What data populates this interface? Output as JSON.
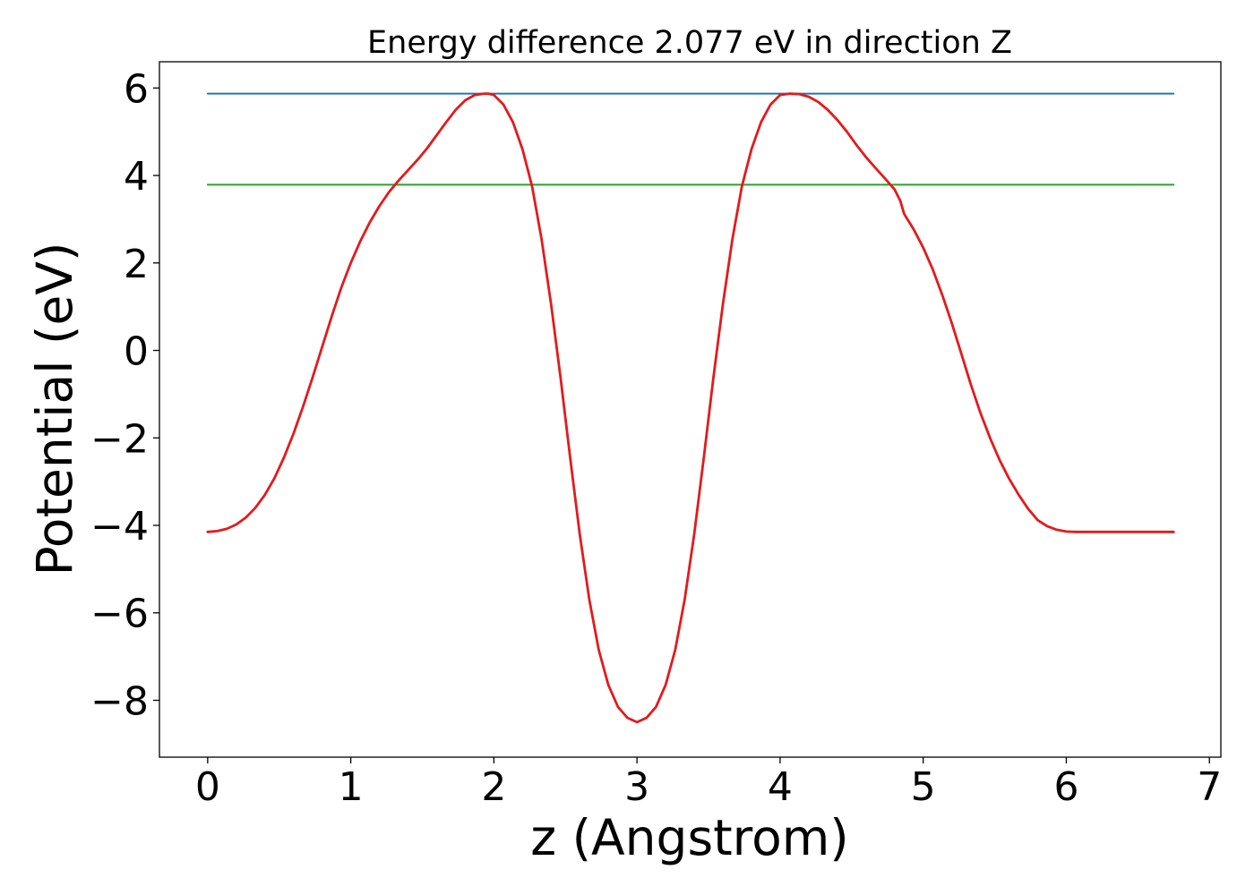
{
  "chart_data": {
    "type": "line",
    "title": "Energy difference 2.077 eV in direction Z",
    "xlabel": "z (Angstrom)",
    "ylabel": "Potential (eV)",
    "xlim": [
      -0.337,
      7.08
    ],
    "ylim": [
      -9.3,
      6.6
    ],
    "xticks": [
      0,
      1,
      2,
      3,
      4,
      5,
      6,
      7
    ],
    "yticks": [
      6,
      4,
      2,
      0,
      -2,
      -4,
      -6,
      -8
    ],
    "xtick_labels": [
      "0",
      "1",
      "2",
      "3",
      "4",
      "5",
      "6",
      "7"
    ],
    "ytick_labels": [
      "6",
      "4",
      "2",
      "0",
      "−2",
      "−4",
      "−6",
      "−8"
    ],
    "grid": false,
    "series": [
      {
        "color": "#1f77b4",
        "x": [
          0,
          6.75
        ],
        "y": [
          5.87,
          5.87
        ]
      },
      {
        "color": "#2ca02c",
        "x": [
          0,
          6.75
        ],
        "y": [
          3.79,
          3.79
        ]
      },
      {
        "color": "#e31a1c",
        "x": [
          0,
          0.067,
          0.133,
          0.2,
          0.267,
          0.333,
          0.4,
          0.467,
          0.533,
          0.6,
          0.667,
          0.733,
          0.8,
          0.867,
          0.933,
          1.0,
          1.067,
          1.133,
          1.2,
          1.267,
          1.333,
          1.4,
          1.467,
          1.533,
          1.6,
          1.667,
          1.733,
          1.8,
          1.867,
          1.933,
          1.96,
          2.0,
          2.067,
          2.133,
          2.2,
          2.267,
          2.333,
          2.4,
          2.467,
          2.533,
          2.6,
          2.667,
          2.733,
          2.8,
          2.867,
          2.933,
          3.0,
          3.067,
          3.133,
          3.2,
          3.267,
          3.333,
          3.4,
          3.467,
          3.533,
          3.6,
          3.667,
          3.733,
          3.8,
          3.867,
          3.933,
          4.0,
          4.067,
          4.133,
          4.2,
          4.267,
          4.333,
          4.4,
          4.467,
          4.533,
          4.6,
          4.667,
          4.733,
          4.8,
          4.84,
          4.867,
          4.933,
          5.0,
          5.067,
          5.133,
          5.2,
          5.267,
          5.333,
          5.4,
          5.467,
          5.533,
          5.6,
          5.667,
          5.733,
          5.8,
          5.867,
          5.933,
          6.0,
          6.067,
          6.133,
          6.2,
          6.267,
          6.333,
          6.4,
          6.467,
          6.533,
          6.6,
          6.667,
          6.75
        ],
        "y": [
          -4.15,
          -4.13,
          -4.08,
          -3.98,
          -3.82,
          -3.6,
          -3.3,
          -2.92,
          -2.45,
          -1.9,
          -1.28,
          -0.62,
          0.08,
          0.78,
          1.43,
          2.0,
          2.5,
          2.93,
          3.3,
          3.62,
          3.88,
          4.12,
          4.36,
          4.62,
          4.92,
          5.22,
          5.5,
          5.72,
          5.84,
          5.87,
          5.87,
          5.84,
          5.62,
          5.22,
          4.6,
          3.75,
          2.55,
          1.05,
          -0.65,
          -2.45,
          -4.2,
          -5.7,
          -6.85,
          -7.65,
          -8.15,
          -8.4,
          -8.5,
          -8.4,
          -8.15,
          -7.65,
          -6.85,
          -5.7,
          -4.2,
          -2.45,
          -0.65,
          1.05,
          2.55,
          3.75,
          4.6,
          5.22,
          5.62,
          5.84,
          5.87,
          5.86,
          5.8,
          5.68,
          5.5,
          5.27,
          5.0,
          4.7,
          4.42,
          4.17,
          3.93,
          3.68,
          3.42,
          3.12,
          2.77,
          2.35,
          1.85,
          1.27,
          0.62,
          -0.08,
          -0.78,
          -1.43,
          -2.0,
          -2.5,
          -2.93,
          -3.3,
          -3.62,
          -3.88,
          -4.02,
          -4.1,
          -4.14,
          -4.15,
          -4.15,
          -4.15,
          -4.15,
          -4.15,
          -4.15,
          -4.15,
          -4.15,
          -4.15,
          -4.15,
          -4.15
        ]
      }
    ]
  }
}
